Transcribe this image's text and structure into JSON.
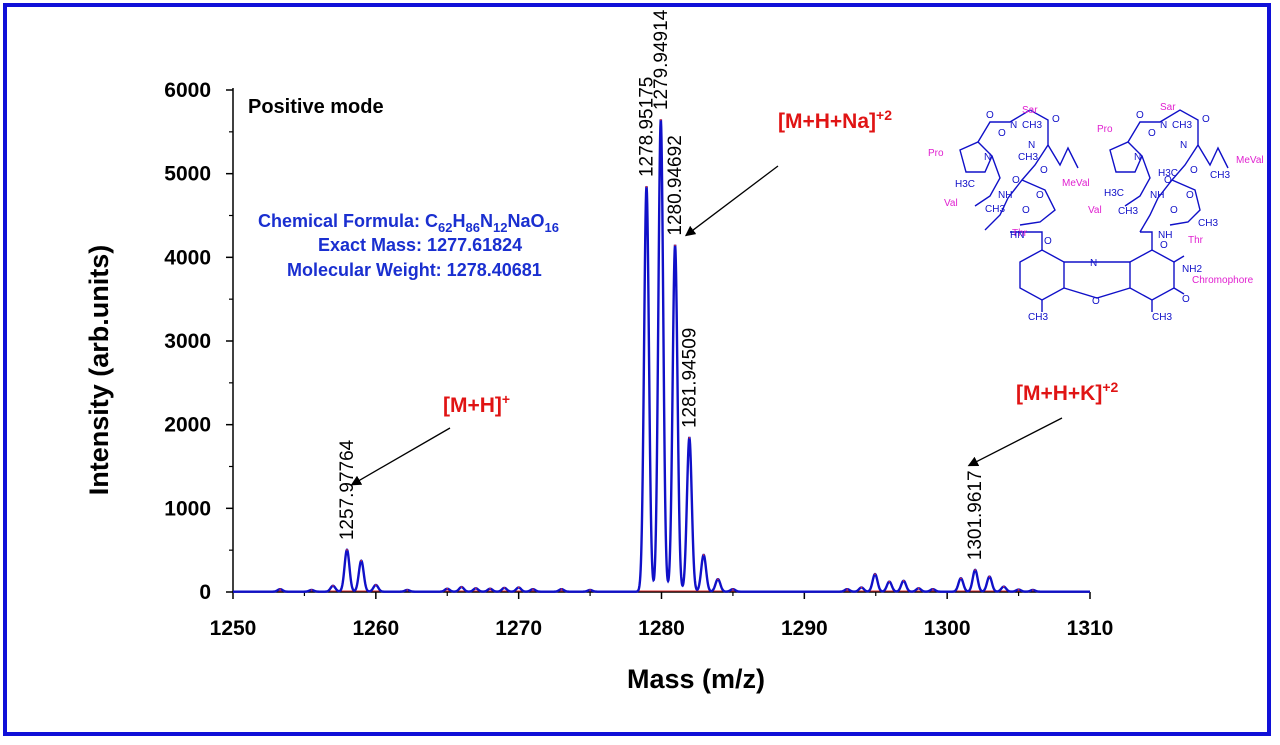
{
  "chart_data": {
    "type": "line",
    "title": "",
    "xlabel": "Mass (m/z)",
    "ylabel": "Intensity (arb.units)",
    "xlim": [
      1250,
      1310
    ],
    "ylim": [
      0,
      6000
    ],
    "x_ticks": [
      "1250",
      "1260",
      "1270",
      "1280",
      "1290",
      "1300",
      "1310"
    ],
    "y_ticks": [
      "0",
      "1000",
      "2000",
      "3000",
      "4000",
      "5000",
      "6000"
    ],
    "grid": false,
    "series": [
      {
        "color": "#1010c8",
        "peaks": [
          {
            "x": 1253.3,
            "y": 30
          },
          {
            "x": 1255.5,
            "y": 20
          },
          {
            "x": 1257.0,
            "y": 70
          },
          {
            "x": 1257.98,
            "y": 500
          },
          {
            "x": 1258.98,
            "y": 370
          },
          {
            "x": 1260.0,
            "y": 80
          },
          {
            "x": 1262.2,
            "y": 20
          },
          {
            "x": 1265.0,
            "y": 35
          },
          {
            "x": 1266.0,
            "y": 55
          },
          {
            "x": 1267.0,
            "y": 40
          },
          {
            "x": 1268.0,
            "y": 35
          },
          {
            "x": 1269.0,
            "y": 45
          },
          {
            "x": 1270.0,
            "y": 50
          },
          {
            "x": 1271.0,
            "y": 30
          },
          {
            "x": 1273.0,
            "y": 30
          },
          {
            "x": 1275.0,
            "y": 20
          },
          {
            "x": 1278.95,
            "y": 4840
          },
          {
            "x": 1279.95,
            "y": 5640
          },
          {
            "x": 1280.95,
            "y": 4140
          },
          {
            "x": 1281.95,
            "y": 1840
          },
          {
            "x": 1282.95,
            "y": 440
          },
          {
            "x": 1283.95,
            "y": 150
          },
          {
            "x": 1285.0,
            "y": 30
          },
          {
            "x": 1293.0,
            "y": 30
          },
          {
            "x": 1294.0,
            "y": 50
          },
          {
            "x": 1294.95,
            "y": 210
          },
          {
            "x": 1295.95,
            "y": 120
          },
          {
            "x": 1296.95,
            "y": 130
          },
          {
            "x": 1298.0,
            "y": 40
          },
          {
            "x": 1299.0,
            "y": 30
          },
          {
            "x": 1300.96,
            "y": 160
          },
          {
            "x": 1301.96,
            "y": 260
          },
          {
            "x": 1302.96,
            "y": 180
          },
          {
            "x": 1303.96,
            "y": 60
          },
          {
            "x": 1305.0,
            "y": 25
          },
          {
            "x": 1306.0,
            "y": 20
          }
        ]
      }
    ],
    "peak_labels": [
      {
        "x": 1257.98,
        "y": 500,
        "text": "1257.97764"
      },
      {
        "x": 1278.95,
        "y": 4840,
        "text": "1278.95175"
      },
      {
        "x": 1279.95,
        "y": 5640,
        "text": "1279.94914"
      },
      {
        "x": 1280.95,
        "y": 4140,
        "text": "1280.94692"
      },
      {
        "x": 1281.95,
        "y": 1840,
        "text": "1281.94509"
      },
      {
        "x": 1301.96,
        "y": 260,
        "text": "1301.9617"
      }
    ],
    "annotations": {
      "mode": "Positive mode",
      "ions": [
        {
          "base": "[M+H]",
          "sup": "+",
          "arrow_to": {
            "x": 1258.3,
            "y": 1280
          }
        },
        {
          "base": "[M+H+Na]",
          "sup": "+2",
          "arrow_to": {
            "x": 1281.7,
            "y": 4260
          }
        },
        {
          "base": "[M+H+K]",
          "sup": "+2",
          "arrow_to": {
            "x": 1301.5,
            "y": 1510
          }
        }
      ],
      "formula": {
        "label": "Chemical Formula: ",
        "parts": [
          "C",
          "62",
          "H",
          "86",
          "N",
          "12",
          "NaO",
          "16"
        ]
      },
      "exact_mass": "Exact Mass: 1277.61824",
      "molecular_weight": "Molecular Weight: 1278.40681"
    }
  },
  "structure": {
    "residues": [
      "Sar",
      "Pro",
      "MeVal",
      "Val",
      "Thr",
      "Sar",
      "Pro",
      "MeVal",
      "Val",
      "Thr",
      "Chromophore"
    ],
    "atoms": [
      "O",
      "N",
      "CH3",
      "O",
      "N",
      "CH3",
      "O",
      "N",
      "O",
      "O",
      "H3C",
      "CH3",
      "NH",
      "O",
      "O",
      "HN",
      "O",
      "O",
      "N",
      "CH3",
      "O",
      "N",
      "H3C",
      "O",
      "N",
      "O",
      "O",
      "H3C",
      "CH3",
      "NH",
      "O",
      "O",
      "NH",
      "O",
      "N",
      "NH2",
      "O",
      "O",
      "CH3",
      "CH3",
      "CH3",
      "CH3"
    ]
  }
}
